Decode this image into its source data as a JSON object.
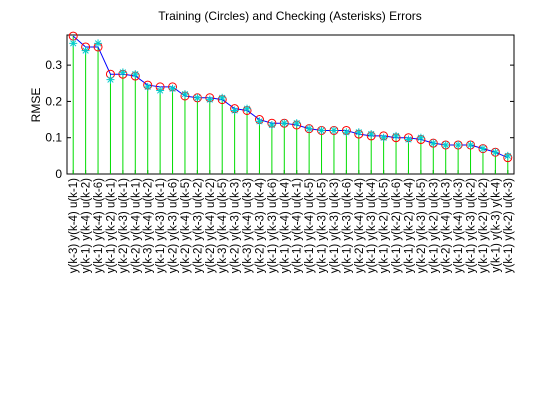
{
  "chart_data": {
    "type": "stem",
    "title": "Training (Circles) and Checking (Asterisks) Errors",
    "y_label": "RMSE",
    "categories": [
      "y(k-3) y(k-4) u(k-1)",
      "y(k-1) y(k-4) u(k-2)",
      "y(k-1) y(k-4) u(k-6)",
      "y(k-1) y(k-2) u(k-1)",
      "y(k-2) y(k-3) u(k-1)",
      "y(k-2) y(k-4) u(k-1)",
      "y(k-3) y(k-4) u(k-2)",
      "y(k-1) y(k-3) u(k-1)",
      "y(k-2) y(k-3) u(k-6)",
      "y(k-2) y(k-4) u(k-5)",
      "y(k-2) y(k-3) u(k-2)",
      "y(k-2) y(k-4) u(k-2)",
      "y(k-3) y(k-4) u(k-5)",
      "y(k-2) y(k-3) u(k-3)",
      "y(k-3) y(k-4) u(k-3)",
      "y(k-2) y(k-3) u(k-4)",
      "y(k-1) y(k-3) u(k-6)",
      "y(k-1) y(k-4) u(k-4)",
      "y(k-1) y(k-4) u(k-1)",
      "y(k-1) y(k-4) u(k-5)",
      "y(k-1) y(k-3) u(k-5)",
      "y(k-1) y(k-3) u(k-3)",
      "y(k-1) y(k-3) u(k-6)",
      "y(k-2) y(k-4) u(k-4)",
      "y(k-1) y(k-3) u(k-4)",
      "y(k-1) y(k-2) u(k-5)",
      "y(k-1) y(k-2) u(k-6)",
      "y(k-1) y(k-2) u(k-4)",
      "y(k-2) y(k-3) u(k-5)",
      "y(k-1) y(k-2) u(k-3)",
      "y(k-2) y(k-4) u(k-3)",
      "y(k-1) y(k-4) u(k-3)",
      "y(k-1) y(k-3) u(k-2)",
      "y(k-1) y(k-2) u(k-2)",
      "y(k-1) y(k-3) y(k-4)",
      "y(k-1) y(k-2) u(k-3)"
    ],
    "series": [
      {
        "name": "Training",
        "color": "#ff0000",
        "marker": "circle",
        "values": [
          0.38,
          0.35,
          0.35,
          0.275,
          0.275,
          0.27,
          0.245,
          0.24,
          0.24,
          0.215,
          0.21,
          0.21,
          0.205,
          0.18,
          0.175,
          0.15,
          0.14,
          0.14,
          0.135,
          0.125,
          0.12,
          0.12,
          0.12,
          0.11,
          0.105,
          0.105,
          0.1,
          0.1,
          0.095,
          0.085,
          0.08,
          0.08,
          0.08,
          0.07,
          0.06,
          0.045
        ]
      },
      {
        "name": "Checking",
        "color": "#00cccc",
        "marker": "asterisk",
        "values": [
          0.36,
          0.34,
          0.36,
          0.26,
          0.28,
          0.275,
          0.24,
          0.23,
          0.235,
          0.22,
          0.21,
          0.205,
          0.21,
          0.175,
          0.18,
          0.145,
          0.135,
          0.14,
          0.14,
          0.125,
          0.12,
          0.12,
          0.115,
          0.115,
          0.11,
          0.1,
          0.105,
          0.095,
          0.1,
          0.085,
          0.08,
          0.08,
          0.08,
          0.07,
          0.06,
          0.05
        ]
      }
    ],
    "line_color": "#0000ff",
    "stem_color": "#00dd00",
    "ylim": [
      0,
      0.383
    ],
    "yticks": [
      0,
      0.1,
      0.2,
      0.3
    ]
  }
}
